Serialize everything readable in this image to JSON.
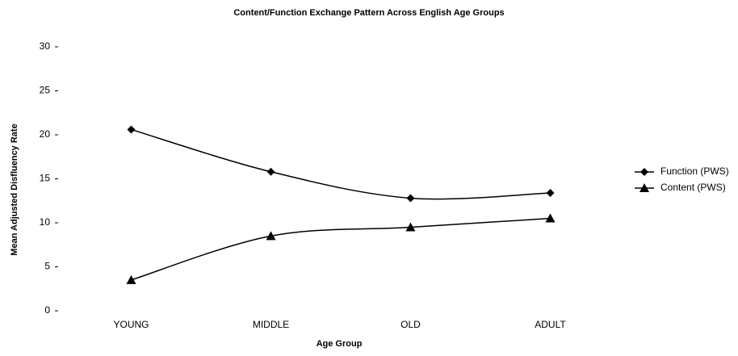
{
  "chart_data": {
    "type": "line",
    "title": "Content/Function Exchange Pattern Across English Age Groups",
    "xlabel": "Age Group",
    "ylabel": "Mean Adjusted Disfluency Rate",
    "categories": [
      "YOUNG",
      "MIDDLE",
      "OLD",
      "ADULT"
    ],
    "series": [
      {
        "name": "Function (PWS)",
        "color": "#000000",
        "marker": "diamond",
        "values": [
          20.6,
          15.8,
          12.8,
          13.4
        ]
      },
      {
        "name": "Content (PWS)",
        "color": "#000000",
        "marker": "triangle",
        "values": [
          3.5,
          8.5,
          9.5,
          10.5
        ]
      }
    ],
    "ylim": [
      0,
      30
    ],
    "yticks": [
      0,
      5,
      10,
      15,
      20,
      25,
      30
    ],
    "grid": false,
    "legend": "right",
    "smooth": true
  }
}
